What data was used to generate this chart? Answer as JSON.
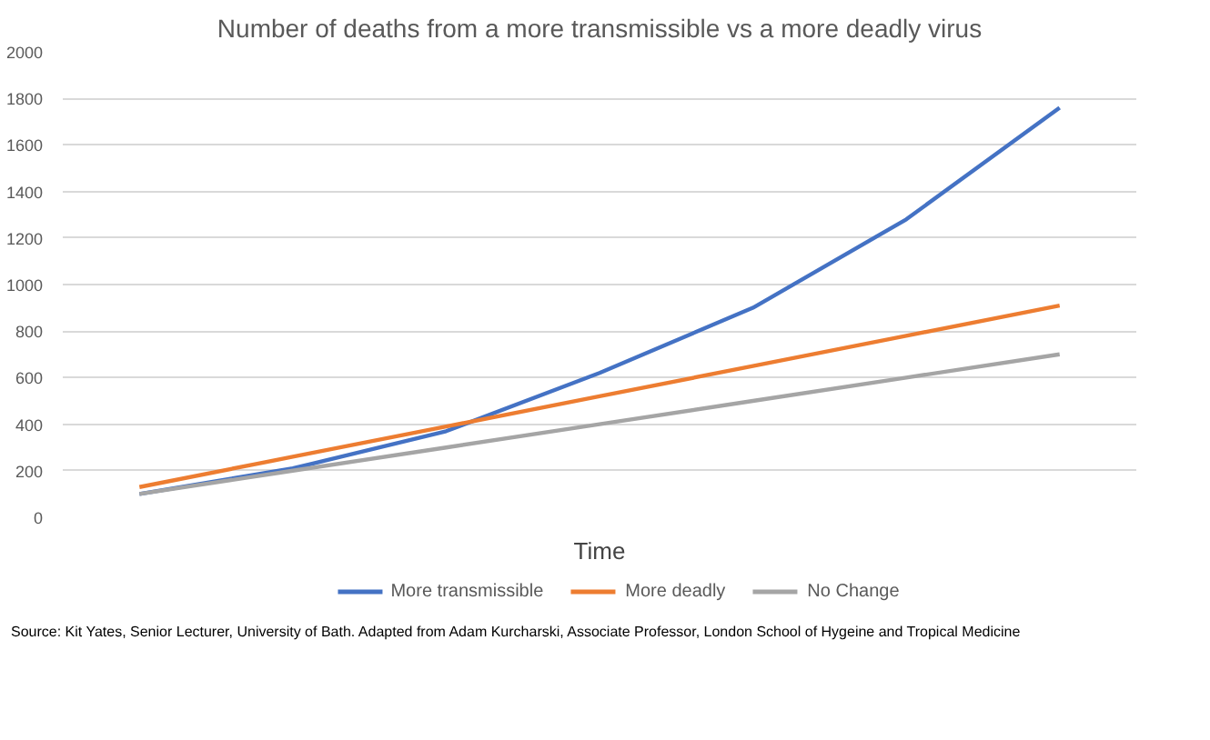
{
  "chart_data": {
    "type": "line",
    "title": "Number of deaths from a more transmissible vs a more deadly virus",
    "xlabel": "Time",
    "categories": [
      null,
      null,
      null,
      null,
      null,
      null,
      null
    ],
    "series": [
      {
        "name": "More transmissible",
        "color": "#4472c4",
        "values": [
          100,
          210,
          370,
          620,
          900,
          1280,
          1760
        ]
      },
      {
        "name": "More deadly",
        "color": "#ed7d31",
        "values": [
          130,
          260,
          390,
          520,
          650,
          780,
          910
        ]
      },
      {
        "name": "No Change",
        "color": "#a5a5a5",
        "values": [
          100,
          200,
          300,
          400,
          500,
          600,
          700
        ]
      }
    ],
    "ylim": [
      0,
      2000
    ],
    "yticks": [
      0,
      200,
      400,
      600,
      800,
      1000,
      1200,
      1400,
      1600,
      1800,
      2000
    ],
    "grid": "y",
    "legend": "bottom",
    "marker": "none",
    "line_style": "solid",
    "annotations": [
      "Source: Kit Yates, Senior Lecturer, University of Bath. Adapted from Adam Kurcharski, Associate Professor, London School of Hygeine and Tropical Medicine"
    ]
  }
}
